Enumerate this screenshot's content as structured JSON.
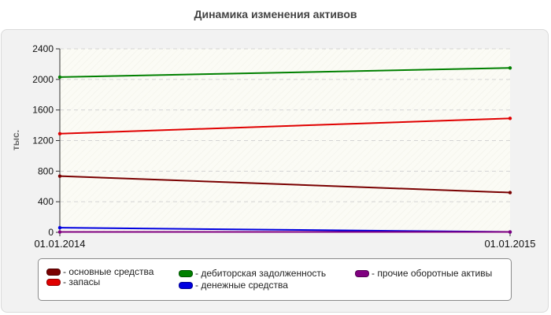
{
  "chart_data": {
    "type": "line",
    "title": "Динамика изменения активов",
    "xlabel": "",
    "ylabel": "тыс.",
    "x": [
      "01.01.2014",
      "01.01.2015"
    ],
    "ylim": [
      0,
      2400
    ],
    "yticks": [
      "0",
      "400",
      "800",
      "1200",
      "1600",
      "2000",
      "2400"
    ],
    "ytick_values": [
      0,
      400,
      800,
      1200,
      1600,
      2000,
      2400
    ],
    "grid": true,
    "legend_position": "bottom",
    "series": [
      {
        "name": "основные средства",
        "color": "#7a0000",
        "values": [
          735,
          520
        ]
      },
      {
        "name": "запасы",
        "color": "#e00000",
        "values": [
          1290,
          1490
        ]
      },
      {
        "name": "дебиторская задолженность",
        "color": "#008000",
        "values": [
          2030,
          2150
        ]
      },
      {
        "name": "денежные средства",
        "color": "#0000e0",
        "values": [
          60,
          5
        ]
      },
      {
        "name": "прочие оборотные активы",
        "color": "#800080",
        "values": [
          5,
          5
        ]
      }
    ]
  },
  "legend": {
    "items": [
      {
        "label": "- основные средства",
        "color": "#7a0000"
      },
      {
        "label": "- запасы",
        "color": "#e00000"
      },
      {
        "label": "- дебиторская задолженность",
        "color": "#008000"
      },
      {
        "label": "- денежные средства",
        "color": "#0000e0"
      },
      {
        "label": "- прочие оборотные активы",
        "color": "#800080"
      }
    ]
  }
}
